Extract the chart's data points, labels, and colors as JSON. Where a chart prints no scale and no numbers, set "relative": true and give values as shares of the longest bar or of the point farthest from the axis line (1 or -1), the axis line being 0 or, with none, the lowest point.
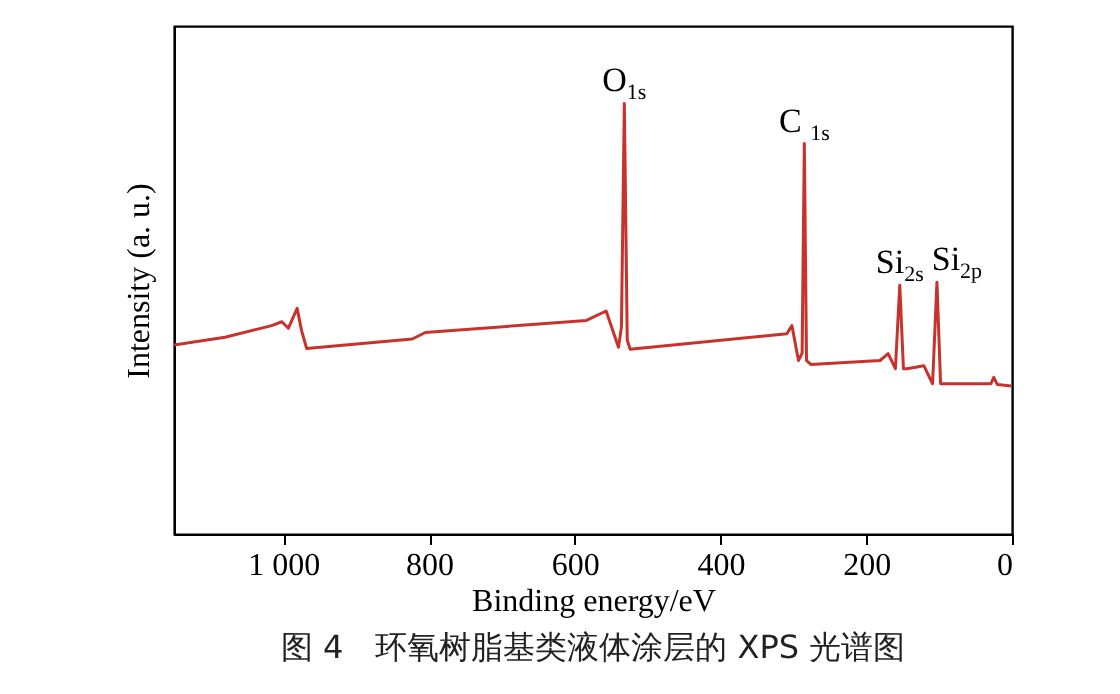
{
  "chart_data": {
    "type": "line",
    "title": "图 4　环氧树脂基类液体涂层的 XPS 光谱图",
    "xlabel": "Binding energy/eV",
    "ylabel": "Intensity (a. u.)",
    "relative": true,
    "xlim": [
      1150,
      0
    ],
    "xticks": [
      {
        "value": 1000,
        "label": "1 000"
      },
      800,
      600,
      400,
      200,
      0
    ],
    "series": [
      {
        "color": "#c8322d",
        "x": [
          1150,
          1080,
          1016,
          1002,
          993,
          981,
          975,
          968,
          823,
          805,
          584,
          557,
          540,
          536,
          532,
          528,
          524,
          309,
          302,
          293,
          288,
          285,
          282,
          276,
          181,
          170,
          160,
          154,
          149,
          144,
          121,
          109,
          103,
          98,
          29,
          25,
          20,
          1
        ],
        "values": [
          0.439,
          0.457,
          0.484,
          0.493,
          0.478,
          0.524,
          0.473,
          0.431,
          0.453,
          0.468,
          0.496,
          0.518,
          0.434,
          0.48,
          1.0,
          0.45,
          0.429,
          0.465,
          0.484,
          0.403,
          0.42,
          0.907,
          0.403,
          0.394,
          0.403,
          0.419,
          0.384,
          0.578,
          0.384,
          0.384,
          0.391,
          0.349,
          0.585,
          0.349,
          0.349,
          0.364,
          0.347,
          0.344
        ]
      }
    ],
    "annotations": [
      {
        "text": "O$_{1s}$",
        "x": 532,
        "y": 1.0
      },
      {
        "text": "C $_{1s}$",
        "x": 285,
        "y": 0.907
      },
      {
        "text": "Si$_{2s}$",
        "x": 154,
        "y": 0.578
      },
      {
        "text": "Si$_{2p}$",
        "x": 103,
        "y": 0.585
      }
    ]
  }
}
